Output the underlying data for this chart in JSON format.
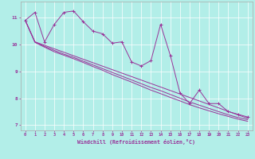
{
  "xlabel": "Windchill (Refroidissement éolien,°C)",
  "background_color": "#b2eee8",
  "line_color": "#993399",
  "grid_color": "#ffffff",
  "xlim": [
    -0.5,
    23.5
  ],
  "ylim": [
    6.8,
    11.6
  ],
  "xticks": [
    0,
    1,
    2,
    3,
    4,
    5,
    6,
    7,
    8,
    9,
    10,
    11,
    12,
    13,
    14,
    15,
    16,
    17,
    18,
    19,
    20,
    21,
    22,
    23
  ],
  "yticks": [
    7,
    8,
    9,
    10,
    11
  ],
  "line1": [
    10.9,
    11.2,
    10.1,
    10.75,
    11.2,
    11.25,
    10.85,
    10.5,
    10.4,
    10.05,
    10.1,
    9.35,
    9.2,
    9.4,
    10.75,
    9.6,
    8.2,
    7.8,
    8.3,
    7.8,
    7.8,
    7.5,
    7.4,
    7.3
  ],
  "line2": [
    10.9,
    10.1,
    9.93,
    9.78,
    9.64,
    9.52,
    9.38,
    9.24,
    9.1,
    8.96,
    8.82,
    8.68,
    8.54,
    8.4,
    8.28,
    8.14,
    8.0,
    7.86,
    7.74,
    7.62,
    7.5,
    7.38,
    7.28,
    7.2
  ],
  "line3": [
    10.9,
    10.08,
    9.9,
    9.73,
    9.6,
    9.47,
    9.33,
    9.18,
    9.04,
    8.88,
    8.74,
    8.6,
    8.45,
    8.3,
    8.17,
    8.03,
    7.9,
    7.76,
    7.64,
    7.53,
    7.42,
    7.32,
    7.22,
    7.14
  ],
  "line4_x": [
    0,
    1,
    23
  ],
  "line4": [
    10.9,
    10.1,
    7.25
  ]
}
